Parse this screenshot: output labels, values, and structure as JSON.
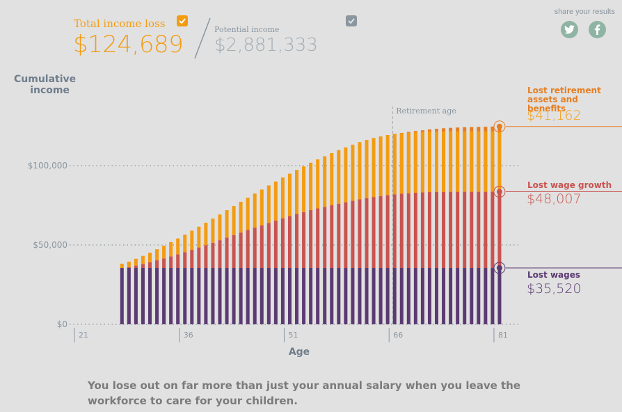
{
  "header": {
    "total_label": "Total income loss",
    "total_value": "$124,689",
    "potential_label": "Potential income",
    "potential_value": "$2,881,333",
    "share_text": "share your results"
  },
  "icons": {
    "total_check": "checkmark-icon",
    "potential_check": "checkmark-icon",
    "twitter": "twitter-icon",
    "facebook": "facebook-icon"
  },
  "colors": {
    "lost_wages": "#5b3a72",
    "lost_wage_growth": "#c9534f",
    "lost_retirement": "#f39c12",
    "lost_retirement_post": "#e67e22"
  },
  "annotations": {
    "retirement_title": "Lost retirement assets and benefits",
    "retirement_value": "$41,162",
    "wage_growth_title": "Lost wage growth",
    "wage_growth_value": "$48,007",
    "lost_wages_title": "Lost wages",
    "lost_wages_value": "$35,520"
  },
  "footer_text": "You lose out on far more than just your annual salary when you leave the workforce to care for your children.",
  "chart_data": {
    "type": "bar",
    "stacked": true,
    "ylabel": "Cumulative income",
    "xlabel": "Age",
    "x_ticks": [
      "21",
      "36",
      "51",
      "66",
      "81"
    ],
    "y_ticks": [
      "$0",
      "$50,000",
      "$100,000"
    ],
    "xlim": [
      21,
      82
    ],
    "ylim": [
      0,
      130000
    ],
    "retirement_marker": {
      "age": 66,
      "label": "Retirement age"
    },
    "ages": [
      27,
      28,
      29,
      30,
      31,
      32,
      33,
      34,
      35,
      36,
      37,
      38,
      39,
      40,
      41,
      42,
      43,
      44,
      45,
      46,
      47,
      48,
      49,
      50,
      51,
      52,
      53,
      54,
      55,
      56,
      57,
      58,
      59,
      60,
      61,
      62,
      63,
      64,
      65,
      66,
      67,
      68,
      69,
      70,
      71,
      72,
      73,
      74,
      75,
      76,
      77,
      78,
      79,
      80,
      81
    ],
    "series": [
      {
        "name": "Lost wages",
        "values": [
          35520,
          35520,
          35520,
          35520,
          35520,
          35520,
          35520,
          35520,
          35520,
          35520,
          35520,
          35520,
          35520,
          35520,
          35520,
          35520,
          35520,
          35520,
          35520,
          35520,
          35520,
          35520,
          35520,
          35520,
          35520,
          35520,
          35520,
          35520,
          35520,
          35520,
          35520,
          35520,
          35520,
          35520,
          35520,
          35520,
          35520,
          35520,
          35520,
          35520,
          35520,
          35520,
          35520,
          35520,
          35520,
          35520,
          35520,
          35520,
          35520,
          35520,
          35520,
          35520,
          35520,
          35520,
          35520
        ]
      },
      {
        "name": "Lost wage growth",
        "values": [
          0,
          500,
          1500,
          2500,
          3600,
          4800,
          6000,
          7300,
          8600,
          10000,
          11400,
          12900,
          14400,
          15900,
          17500,
          19100,
          20700,
          22300,
          23900,
          25400,
          26900,
          28400,
          29900,
          31300,
          32700,
          34000,
          35200,
          36400,
          37500,
          38500,
          39500,
          40500,
          41400,
          42300,
          43200,
          44000,
          44700,
          45300,
          45900,
          46400,
          46800,
          47100,
          47400,
          47600,
          47800,
          47900,
          47950,
          48000,
          48007,
          48007,
          48007,
          48007,
          48007,
          48007,
          48007
        ]
      },
      {
        "name": "Lost retirement assets and benefits",
        "values": [
          2700,
          3500,
          4300,
          5100,
          6000,
          7000,
          8000,
          9000,
          10000,
          11000,
          12100,
          13100,
          14100,
          15200,
          16200,
          17300,
          18300,
          19400,
          20400,
          21500,
          22500,
          23600,
          24600,
          25700,
          26700,
          27800,
          28800,
          29900,
          30900,
          31900,
          32900,
          33800,
          34600,
          35400,
          36100,
          36700,
          37200,
          37600,
          37900,
          38100,
          38300,
          38600,
          38900,
          39200,
          39500,
          39800,
          40100,
          40300,
          40500,
          40700,
          40800,
          40900,
          41000,
          41100,
          41162
        ]
      }
    ]
  }
}
